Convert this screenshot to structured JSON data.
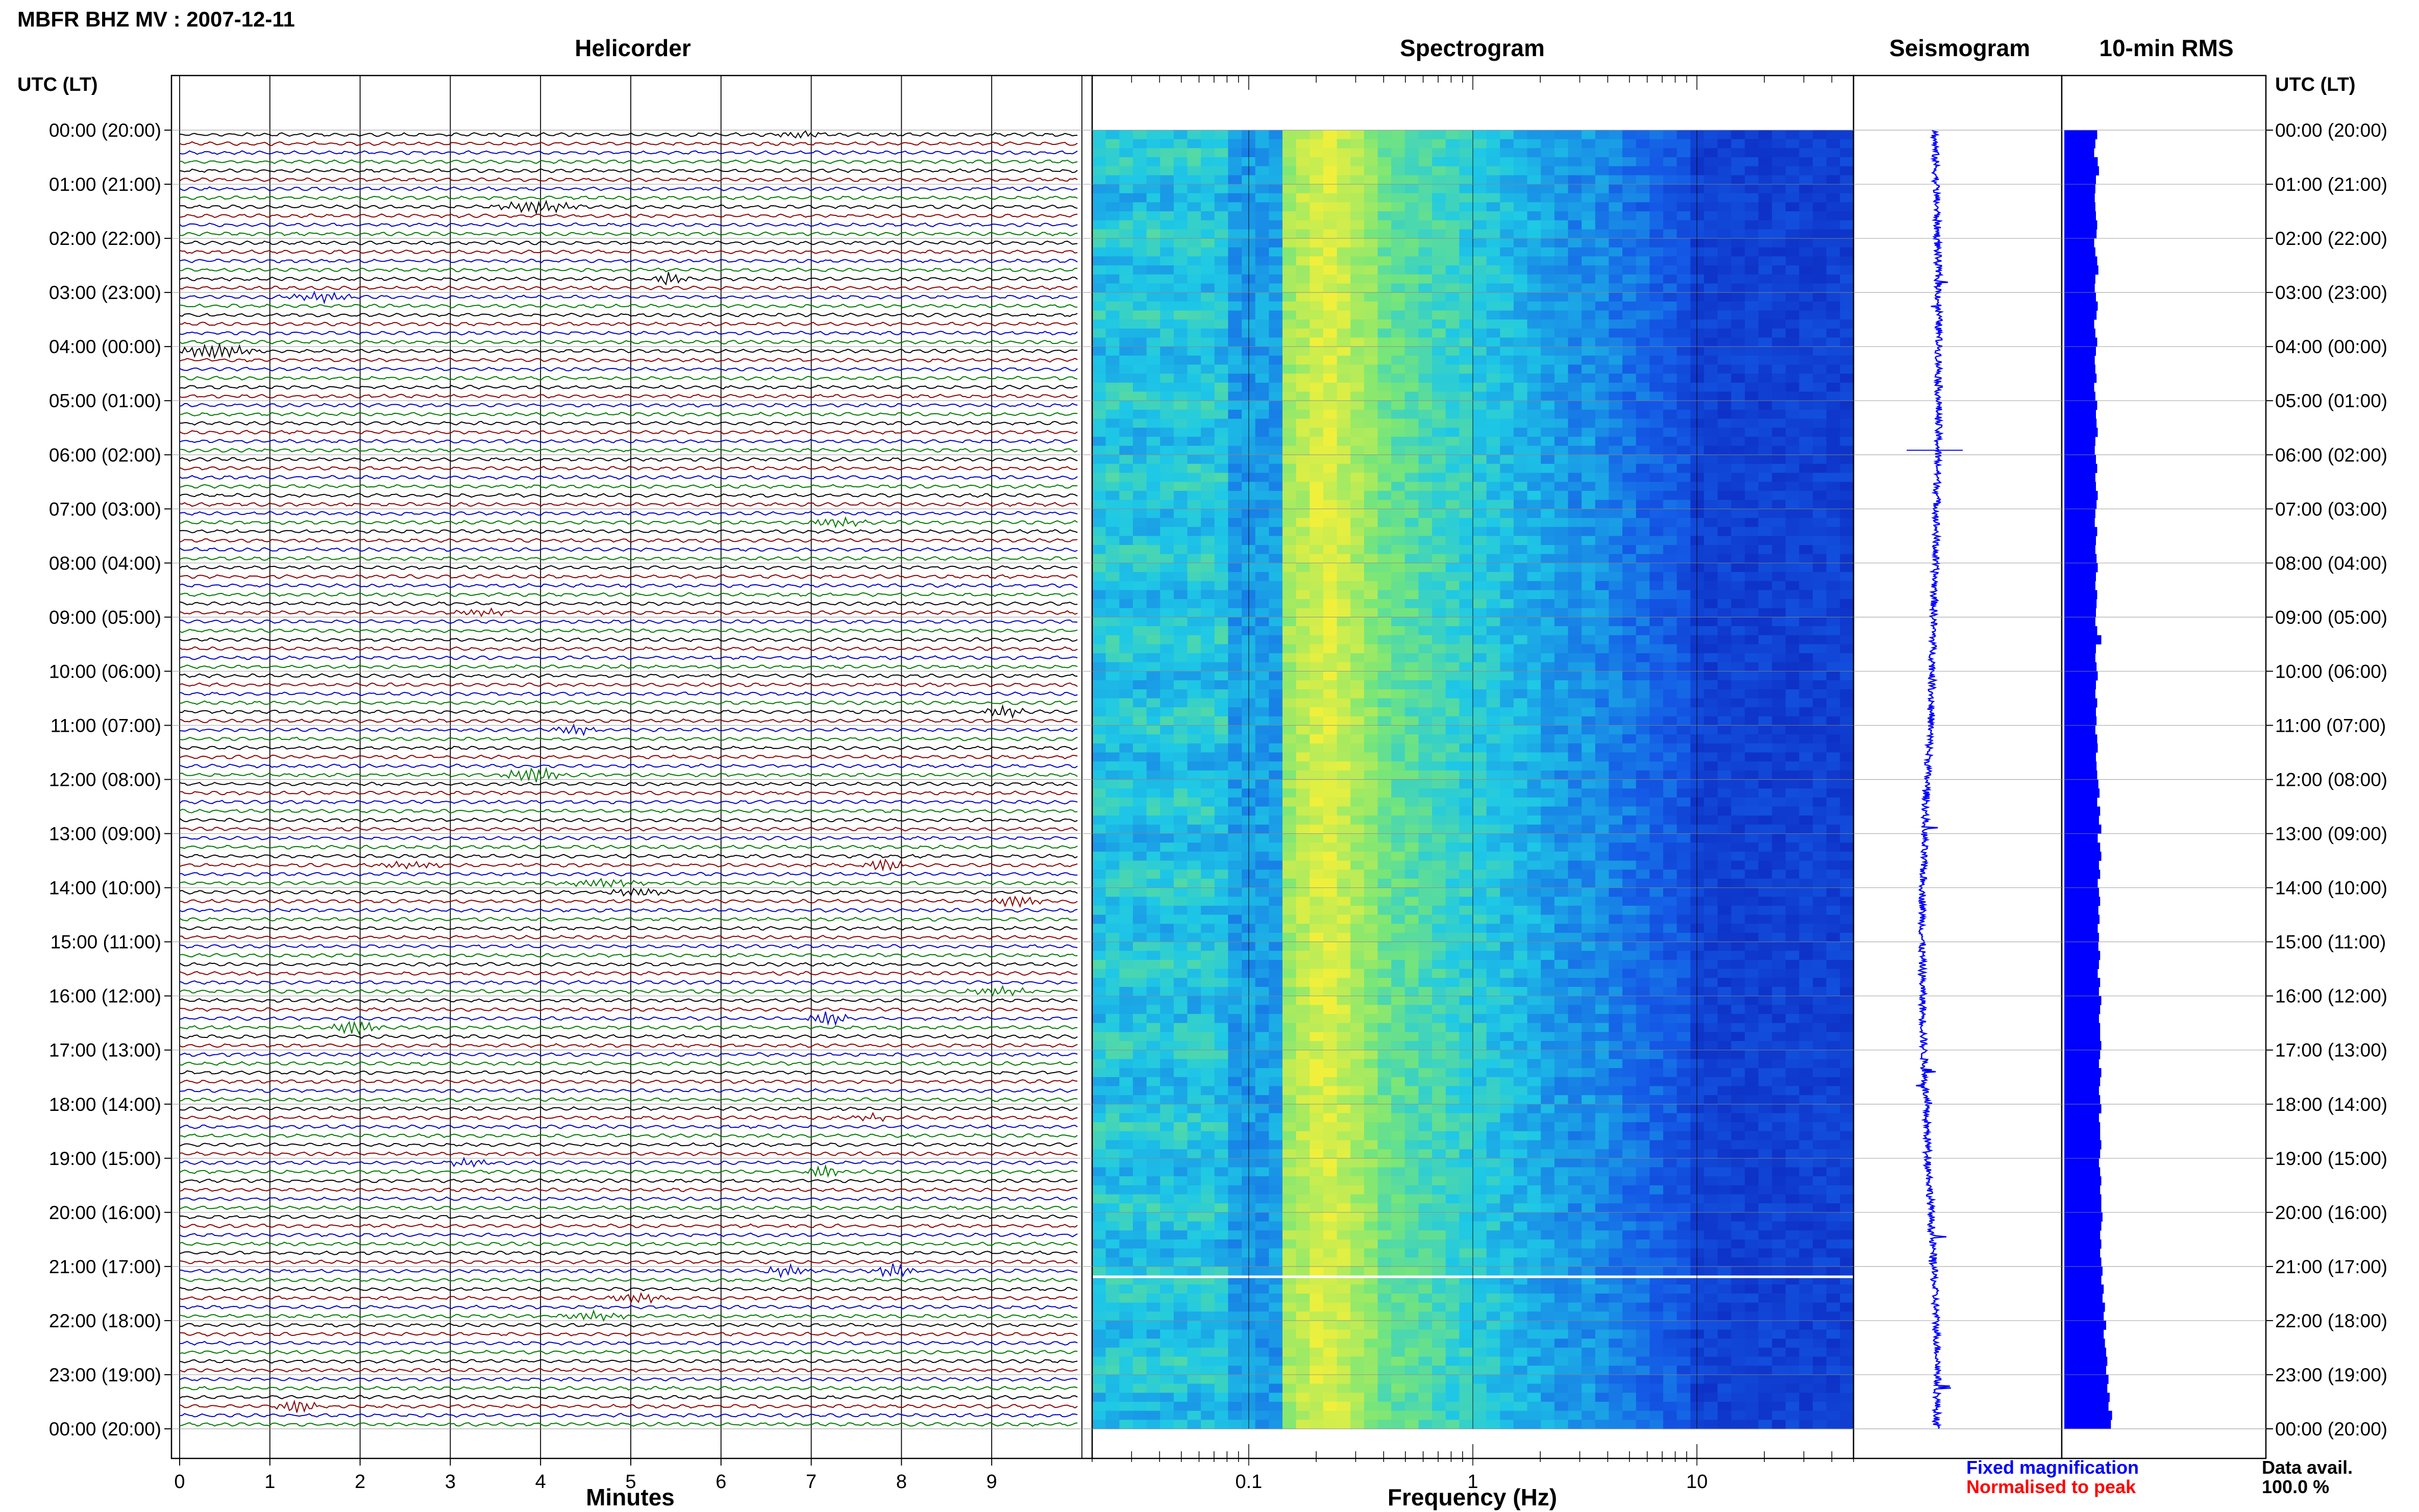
{
  "header": {
    "station_title": "MBFR BHZ MV : 2007-12-11",
    "utc_lt_label_left": "UTC (LT)",
    "utc_lt_label_right": "UTC (LT)"
  },
  "panels": {
    "helicorder_title": "Helicorder",
    "spectrogram_title": "Spectrogram",
    "seismogram_title": "Seismogram",
    "rms_title": "10-min RMS"
  },
  "footer": {
    "minutes_label": "Minutes",
    "frequency_label": "Frequency (Hz)",
    "legend_fixed": "Fixed magnification",
    "legend_normalised": "Normalised to peak",
    "data_avail_label": "Data avail.",
    "data_avail_value": "100.0 %"
  },
  "colors": {
    "trace_cycle": [
      "#000000",
      "#8b0000",
      "#0000c8",
      "#007a00"
    ],
    "legend_fixed": "#0000ff",
    "legend_normalised": "#ff0000",
    "seismogram_trace": "#0000ff",
    "rms_bar": "#0000ff",
    "spectrogram_low": "#0a1ab4",
    "spectrogram_high": "#f0f03c"
  },
  "chart_data": [
    {
      "type": "helicorder",
      "title": "Helicorder",
      "xlabel": "Minutes",
      "x_ticks": [
        "0",
        "1",
        "2",
        "3",
        "4",
        "5",
        "6",
        "7",
        "8",
        "9"
      ],
      "xlim": [
        0,
        10
      ],
      "rows_per_hour": 6,
      "time_labels": [
        "00:00 (20:00)",
        "01:00 (21:00)",
        "02:00 (22:00)",
        "03:00 (23:00)",
        "04:00 (00:00)",
        "05:00 (01:00)",
        "06:00 (02:00)",
        "07:00 (03:00)",
        "08:00 (04:00)",
        "09:00 (05:00)",
        "10:00 (06:00)",
        "11:00 (07:00)",
        "12:00 (08:00)",
        "13:00 (09:00)",
        "14:00 (10:00)",
        "15:00 (11:00)",
        "16:00 (12:00)",
        "17:00 (13:00)",
        "18:00 (14:00)",
        "19:00 (15:00)",
        "20:00 (16:00)",
        "21:00 (17:00)",
        "22:00 (18:00)",
        "23:00 (19:00)",
        "00:00 (20:00)"
      ]
    },
    {
      "type": "heatmap",
      "title": "Spectrogram",
      "xlabel": "Frequency (Hz)",
      "x_scale": "log",
      "xlim": [
        0.02,
        50
      ],
      "x_ticks": [
        "0.1",
        "1",
        "10"
      ],
      "peak_band_hz": [
        0.17,
        0.35
      ]
    },
    {
      "type": "line",
      "title": "Seismogram",
      "xlim": [
        -1,
        1
      ],
      "y": "time"
    },
    {
      "type": "bar",
      "title": "10-min RMS",
      "orientation": "horizontal",
      "values": [
        0.55,
        0.52,
        0.5,
        0.56,
        0.58,
        0.53,
        0.52,
        0.51,
        0.52,
        0.53,
        0.55,
        0.54,
        0.5,
        0.52,
        0.55,
        0.57,
        0.52,
        0.51,
        0.53,
        0.56,
        0.54,
        0.5,
        0.52,
        0.55,
        0.53,
        0.51,
        0.52,
        0.54,
        0.5,
        0.52,
        0.55,
        0.53,
        0.54,
        0.56,
        0.52,
        0.51,
        0.53,
        0.55,
        0.52,
        0.53,
        0.56,
        0.54,
        0.52,
        0.51,
        0.55,
        0.53,
        0.52,
        0.54,
        0.56,
        0.53,
        0.52,
        0.55,
        0.54,
        0.53,
        0.52,
        0.55,
        0.62,
        0.53,
        0.52,
        0.54,
        0.56,
        0.53,
        0.52,
        0.55,
        0.53,
        0.54,
        0.52,
        0.55,
        0.56,
        0.53,
        0.54,
        0.55,
        0.57,
        0.59,
        0.55,
        0.6,
        0.58,
        0.62,
        0.56,
        0.6,
        0.62,
        0.58,
        0.6,
        0.56,
        0.58,
        0.6,
        0.57,
        0.59,
        0.56,
        0.58,
        0.57,
        0.6,
        0.58,
        0.56,
        0.6,
        0.58,
        0.62,
        0.6,
        0.58,
        0.6,
        0.6,
        0.62,
        0.6,
        0.58,
        0.62,
        0.6,
        0.58,
        0.6,
        0.62,
        0.58,
        0.6,
        0.6,
        0.62,
        0.6,
        0.58,
        0.6,
        0.62,
        0.6,
        0.62,
        0.62,
        0.64,
        0.62,
        0.6,
        0.62,
        0.6,
        0.62,
        0.64,
        0.62,
        0.66,
        0.64,
        0.68,
        0.66,
        0.7,
        0.66,
        0.68,
        0.7,
        0.72,
        0.7,
        0.74,
        0.72,
        0.76,
        0.74,
        0.8,
        0.78
      ],
      "xlim": [
        0,
        1
      ]
    }
  ]
}
